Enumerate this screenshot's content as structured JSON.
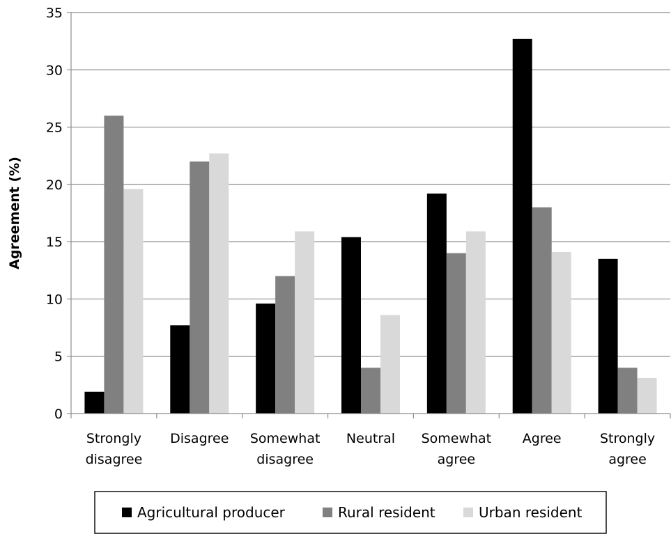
{
  "chart_data": {
    "type": "bar",
    "title": "",
    "xlabel": "",
    "ylabel": "Agreement (%)",
    "ylim": [
      0,
      35
    ],
    "yticks": [
      0,
      5,
      10,
      15,
      20,
      25,
      30,
      35
    ],
    "grid": true,
    "legend_position": "bottom",
    "categories": [
      [
        "Strongly",
        "disagree"
      ],
      [
        "Disagree"
      ],
      [
        "Somewhat",
        "disagree"
      ],
      [
        "Neutral"
      ],
      [
        "Somewhat",
        "agree"
      ],
      [
        "Agree"
      ],
      [
        "Strongly",
        "agree"
      ]
    ],
    "series": [
      {
        "name": "Agricultural producer",
        "color": "#000000",
        "values": [
          1.9,
          7.7,
          9.6,
          15.4,
          19.2,
          32.7,
          13.5
        ]
      },
      {
        "name": "Rural resident",
        "color": "#808080",
        "values": [
          26.0,
          22.0,
          12.0,
          4.0,
          14.0,
          18.0,
          4.0
        ]
      },
      {
        "name": "Urban resident",
        "color": "#d9d9d9",
        "values": [
          19.6,
          22.7,
          15.9,
          8.6,
          15.9,
          14.1,
          3.1
        ]
      }
    ]
  }
}
